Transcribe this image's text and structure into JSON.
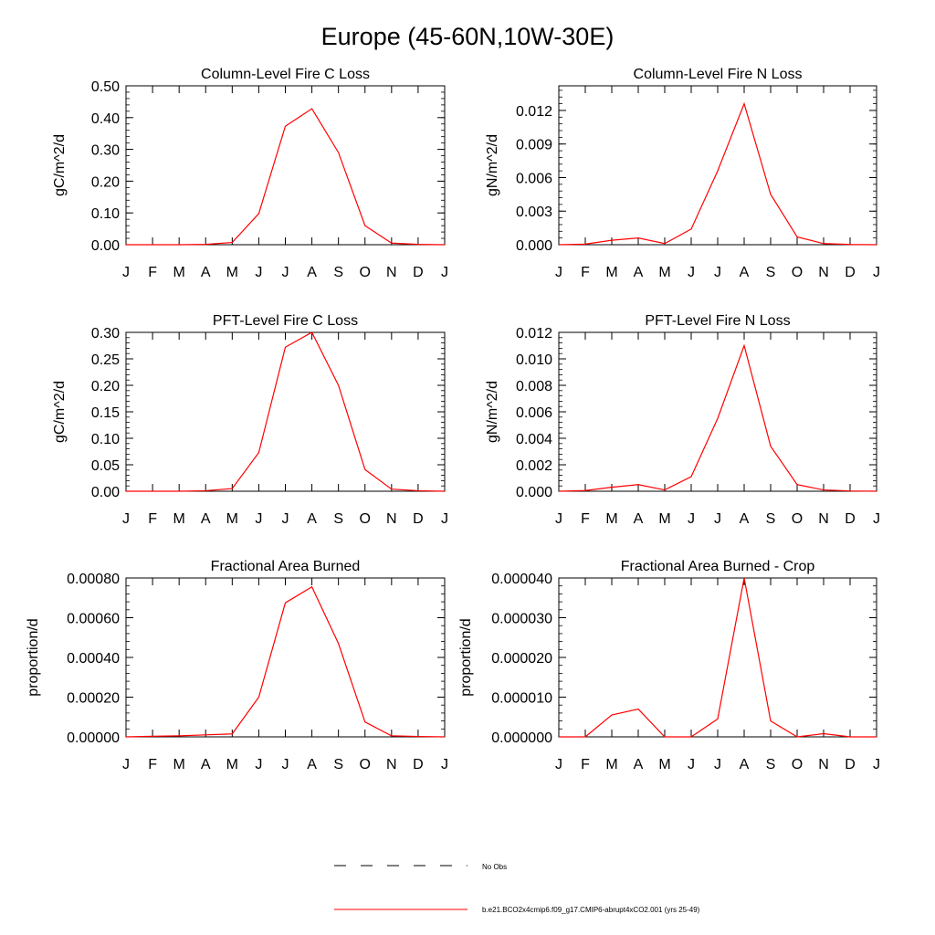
{
  "page_title": "Europe (45-60N,10W-30E)",
  "month_labels": [
    "J",
    "F",
    "M",
    "A",
    "M",
    "J",
    "J",
    "A",
    "S",
    "O",
    "N",
    "D",
    "J"
  ],
  "legend": {
    "obs_label": "No Obs",
    "model_label": "b.e21.BCO2x4cmip6.f09_g17.CMIP6-abrupt4xCO2.001 (yrs 25-49)",
    "obs_color": "#000000",
    "model_color": "#ff0000"
  },
  "chart_data": [
    {
      "type": "line",
      "title": "Column-Level Fire C Loss",
      "ylabel": "gC/m^2/d",
      "ylim": [
        0,
        0.5
      ],
      "yticks": [
        0,
        0.1,
        0.2,
        0.3,
        0.4,
        0.5
      ],
      "ytick_labels": [
        "0.00",
        "0.10",
        "0.20",
        "0.30",
        "0.40",
        "0.50"
      ],
      "x": [
        "J",
        "F",
        "M",
        "A",
        "M",
        "J",
        "J",
        "A",
        "S",
        "O",
        "N",
        "D",
        "J"
      ],
      "series": [
        {
          "name": "b.e21.BCO2x4cmip6.f09_g17.CMIP6-abrupt4xCO2.001 (yrs 25-49)",
          "color": "#ff0000",
          "values": [
            0,
            0,
            0,
            0.001,
            0.007,
            0.098,
            0.373,
            0.428,
            0.29,
            0.06,
            0.005,
            0.001,
            0
          ]
        }
      ]
    },
    {
      "type": "line",
      "title": "Column-Level Fire N Loss",
      "ylabel": "gN/m^2/d",
      "ylim": [
        0,
        0.0142
      ],
      "yticks": [
        0,
        0.003,
        0.006,
        0.009,
        0.012
      ],
      "ytick_labels": [
        "0.000",
        "0.003",
        "0.006",
        "0.009",
        "0.012"
      ],
      "x": [
        "J",
        "F",
        "M",
        "A",
        "M",
        "J",
        "J",
        "A",
        "S",
        "O",
        "N",
        "D",
        "J"
      ],
      "series": [
        {
          "name": "b.e21.BCO2x4cmip6.f09_g17.CMIP6-abrupt4xCO2.001 (yrs 25-49)",
          "color": "#ff0000",
          "values": [
            0,
            5e-05,
            0.0004,
            0.0006,
            0.0001,
            0.0014,
            0.0066,
            0.0126,
            0.0045,
            0.0007,
            0.0001,
            2e-05,
            0
          ]
        }
      ]
    },
    {
      "type": "line",
      "title": "PFT-Level Fire C Loss",
      "ylabel": "gC/m^2/d",
      "ylim": [
        0,
        0.3
      ],
      "yticks": [
        0,
        0.05,
        0.1,
        0.15,
        0.2,
        0.25,
        0.3
      ],
      "ytick_labels": [
        "0.00",
        "0.05",
        "0.10",
        "0.15",
        "0.20",
        "0.25",
        "0.30"
      ],
      "x": [
        "J",
        "F",
        "M",
        "A",
        "M",
        "J",
        "J",
        "A",
        "S",
        "O",
        "N",
        "D",
        "J"
      ],
      "series": [
        {
          "name": "b.e21.BCO2x4cmip6.f09_g17.CMIP6-abrupt4xCO2.001 (yrs 25-49)",
          "color": "#ff0000",
          "values": [
            0,
            0,
            0,
            0.001,
            0.005,
            0.073,
            0.272,
            0.3,
            0.2,
            0.041,
            0.004,
            0.001,
            0
          ]
        }
      ]
    },
    {
      "type": "line",
      "title": "PFT-Level Fire N Loss",
      "ylabel": "gN/m^2/d",
      "ylim": [
        0,
        0.012
      ],
      "yticks": [
        0,
        0.002,
        0.004,
        0.006,
        0.008,
        0.01,
        0.012
      ],
      "ytick_labels": [
        "0.000",
        "0.002",
        "0.004",
        "0.006",
        "0.008",
        "0.010",
        "0.012"
      ],
      "x": [
        "J",
        "F",
        "M",
        "A",
        "M",
        "J",
        "J",
        "A",
        "S",
        "O",
        "N",
        "D",
        "J"
      ],
      "series": [
        {
          "name": "b.e21.BCO2x4cmip6.f09_g17.CMIP6-abrupt4xCO2.001 (yrs 25-49)",
          "color": "#ff0000",
          "values": [
            0,
            5e-05,
            0.0003,
            0.0005,
            0.0001,
            0.0011,
            0.0055,
            0.011,
            0.0034,
            0.0005,
            0.0001,
            2e-05,
            0
          ]
        }
      ]
    },
    {
      "type": "line",
      "title": "Fractional Area Burned",
      "ylabel": "proportion/d",
      "ylim": [
        0,
        0.0008
      ],
      "yticks": [
        0,
        0.0002,
        0.0004,
        0.0006,
        0.0008
      ],
      "ytick_labels": [
        "0.00000",
        "0.00020",
        "0.00040",
        "0.00060",
        "0.00080"
      ],
      "x": [
        "J",
        "F",
        "M",
        "A",
        "M",
        "J",
        "J",
        "A",
        "S",
        "O",
        "N",
        "D",
        "J"
      ],
      "series": [
        {
          "name": "b.e21.BCO2x4cmip6.f09_g17.CMIP6-abrupt4xCO2.001 (yrs 25-49)",
          "color": "#ff0000",
          "values": [
            0,
            3e-06,
            5e-06,
            1e-05,
            1.5e-05,
            0.0002,
            0.000675,
            0.000755,
            0.00047,
            7.5e-05,
            5e-06,
            2e-06,
            0
          ]
        }
      ]
    },
    {
      "type": "line",
      "title": "Fractional Area Burned - Crop",
      "ylabel": "proportion/d",
      "ylim": [
        0,
        4e-05
      ],
      "yticks": [
        0,
        1e-05,
        2e-05,
        3e-05,
        4e-05
      ],
      "ytick_labels": [
        "0.000000",
        "0.000010",
        "0.000020",
        "0.000030",
        "0.000040"
      ],
      "x": [
        "J",
        "F",
        "M",
        "A",
        "M",
        "J",
        "J",
        "A",
        "S",
        "O",
        "N",
        "D",
        "J"
      ],
      "series": [
        {
          "name": "b.e21.BCO2x4cmip6.f09_g17.CMIP6-abrupt4xCO2.001 (yrs 25-49)",
          "color": "#ff0000",
          "values": [
            0,
            0,
            5.5e-06,
            7e-06,
            0,
            0,
            4.5e-06,
            4e-05,
            4e-06,
            0,
            8e-07,
            0,
            0
          ]
        }
      ]
    }
  ]
}
